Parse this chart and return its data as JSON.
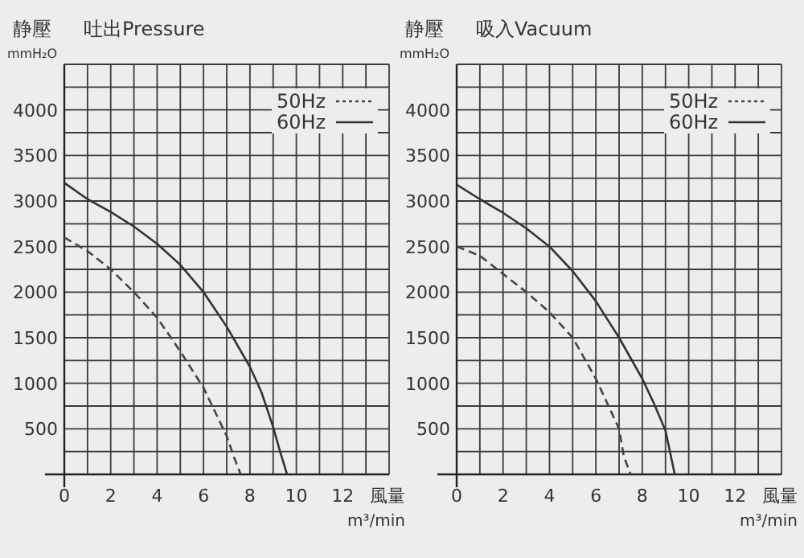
{
  "chart_data": [
    {
      "type": "line",
      "title": "吐出Pressure",
      "ylabel": "静壓\nmmH₂O",
      "xlabel": "風量\nm³/min",
      "grid": true,
      "legend": "top right",
      "xlim": [
        0,
        14
      ],
      "ylim": [
        0,
        4500
      ],
      "xticks": [
        0,
        {
          "value": 1,
          "label": null
        },
        2,
        {
          "value": 3,
          "label": null
        },
        4,
        {
          "value": 5,
          "label": null
        },
        6,
        {
          "value": 7,
          "label": null
        },
        8,
        {
          "value": 9,
          "label": null
        },
        10,
        {
          "value": 11,
          "label": null
        },
        12,
        {
          "value": 13,
          "label": null
        },
        {
          "value": 14,
          "label": null
        }
      ],
      "yticks": [
        {
          "value": 0,
          "label": null
        },
        {
          "value": 250,
          "label": null
        },
        500,
        {
          "value": 750,
          "label": null
        },
        1000,
        {
          "value": 1250,
          "label": null
        },
        1500,
        {
          "value": 1750,
          "label": null
        },
        2000,
        {
          "value": 2250,
          "label": null
        },
        2500,
        {
          "value": 2750,
          "label": null
        },
        3000,
        {
          "value": 3250,
          "label": null
        },
        3500,
        {
          "value": 3750,
          "label": null
        },
        4000,
        {
          "value": 4250,
          "label": null
        },
        {
          "value": 4500,
          "label": null
        }
      ],
      "series": [
        {
          "name": "50Hz",
          "color": "#444444",
          "line_style": "dashed",
          "x": [
            0,
            1,
            2,
            3,
            4,
            5,
            6,
            7,
            7.3,
            7.6
          ],
          "values": [
            2600,
            2450,
            2250,
            2000,
            1720,
            1350,
            950,
            420,
            200,
            0
          ]
        },
        {
          "name": "60Hz",
          "color": "#333333",
          "line_style": "solid",
          "x": [
            0,
            1,
            2,
            3,
            4,
            5,
            6,
            7,
            8,
            8.5,
            9,
            9.3,
            9.6
          ],
          "values": [
            3200,
            3020,
            2880,
            2720,
            2530,
            2300,
            2000,
            1620,
            1180,
            900,
            520,
            250,
            0
          ]
        }
      ]
    },
    {
      "type": "line",
      "title": "吸入Vacuum",
      "ylabel": "静壓\nmmH₂O",
      "xlabel": "風量\nm³/min",
      "grid": true,
      "legend": "top right",
      "xlim": [
        0,
        14
      ],
      "ylim": [
        0,
        4500
      ],
      "xticks": [
        0,
        {
          "value": 1,
          "label": null
        },
        2,
        {
          "value": 3,
          "label": null
        },
        4,
        {
          "value": 5,
          "label": null
        },
        6,
        {
          "value": 7,
          "label": null
        },
        8,
        {
          "value": 9,
          "label": null
        },
        10,
        {
          "value": 11,
          "label": null
        },
        12,
        {
          "value": 13,
          "label": null
        },
        {
          "value": 14,
          "label": null
        }
      ],
      "yticks": [
        {
          "value": 0,
          "label": null
        },
        {
          "value": 250,
          "label": null
        },
        500,
        {
          "value": 750,
          "label": null
        },
        1000,
        {
          "value": 1250,
          "label": null
        },
        1500,
        {
          "value": 1750,
          "label": null
        },
        2000,
        {
          "value": 2250,
          "label": null
        },
        2500,
        {
          "value": 2750,
          "label": null
        },
        3000,
        {
          "value": 3250,
          "label": null
        },
        3500,
        {
          "value": 3750,
          "label": null
        },
        4000,
        {
          "value": 4250,
          "label": null
        },
        {
          "value": 4500,
          "label": null
        }
      ],
      "series": [
        {
          "name": "50Hz",
          "color": "#444444",
          "line_style": "dashed",
          "x": [
            0,
            1,
            2,
            3,
            4,
            5,
            6,
            7,
            7.2,
            7.5
          ],
          "values": [
            2500,
            2400,
            2200,
            2000,
            1780,
            1500,
            1050,
            500,
            200,
            0
          ]
        },
        {
          "name": "60Hz",
          "color": "#333333",
          "line_style": "solid",
          "x": [
            0,
            1,
            2,
            3,
            4,
            5,
            6,
            7,
            8,
            8.5,
            9,
            9.4
          ],
          "values": [
            3180,
            3020,
            2870,
            2700,
            2500,
            2230,
            1900,
            1500,
            1050,
            780,
            480,
            0
          ]
        }
      ]
    }
  ]
}
